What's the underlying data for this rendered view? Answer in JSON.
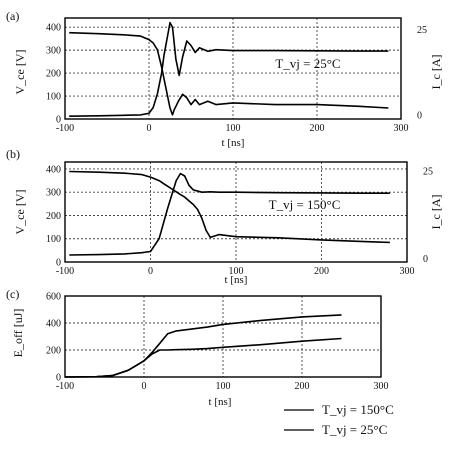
{
  "chart_data": [
    {
      "type": "line",
      "panel": "(a)",
      "xlabel": "t [ns]",
      "ylabel": "V_ce [V]",
      "ylabel_right": "I_c [A]",
      "x_ticks": [
        -100,
        0,
        100,
        200,
        300
      ],
      "y_ticks": [
        0,
        100,
        200,
        300,
        400
      ],
      "y2_ticks": [
        0,
        25
      ],
      "xlim": [
        -100,
        300
      ],
      "ylim": [
        0,
        440
      ],
      "y2lim": [
        -1.2,
        28.3
      ],
      "grid": true,
      "annotation": {
        "text": "T_vj = 25°C",
        "x": 198,
        "y": 240
      },
      "series": [
        {
          "role": "collector current",
          "axis": "right",
          "x": [
            -95,
            -60,
            -30,
            -10,
            0,
            5,
            10,
            15,
            20,
            25,
            28,
            30,
            35,
            40,
            45,
            50,
            55,
            60,
            70,
            80,
            100,
            150,
            200,
            250,
            285
          ],
          "y": [
            24,
            23.7,
            23.4,
            23,
            22,
            21,
            19,
            14,
            8,
            2,
            0,
            1.5,
            4,
            6,
            5,
            3,
            4.5,
            3,
            4,
            3,
            3.5,
            3,
            3,
            2.5,
            2
          ]
        },
        {
          "role": "collector-emitter voltage",
          "axis": "left",
          "x": [
            -95,
            -60,
            -30,
            -10,
            0,
            5,
            10,
            15,
            18,
            22,
            25,
            28,
            32,
            36,
            40,
            45,
            50,
            55,
            60,
            70,
            80,
            100,
            150,
            200,
            250,
            285
          ],
          "y": [
            12,
            14,
            16,
            18,
            25,
            50,
            110,
            200,
            280,
            360,
            420,
            400,
            260,
            190,
            270,
            340,
            320,
            290,
            310,
            295,
            302,
            298,
            298,
            297,
            296,
            296
          ]
        }
      ]
    },
    {
      "type": "line",
      "panel": "(b)",
      "xlabel": "t [ns]",
      "ylabel": "V_ce [V]",
      "ylabel_right": "I_c [A]",
      "x_ticks": [
        -100,
        0,
        100,
        200,
        300
      ],
      "y_ticks": [
        0,
        100,
        200,
        300,
        400
      ],
      "y2_ticks": [
        0,
        25
      ],
      "xlim": [
        -100,
        300
      ],
      "ylim": [
        0,
        430
      ],
      "y2lim": [
        -1,
        27.5
      ],
      "grid": true,
      "annotation": {
        "text": "T_vj = 150°C",
        "x": 185,
        "y": 245
      },
      "series": [
        {
          "role": "collector current",
          "axis": "right",
          "x": [
            -95,
            -60,
            -30,
            -10,
            0,
            10,
            15,
            20,
            25,
            30,
            35,
            40,
            45,
            50,
            55,
            60,
            65,
            70,
            80,
            100,
            150,
            200,
            250,
            280
          ],
          "y": [
            24.8,
            24.6,
            24.3,
            23.9,
            23.2,
            22.2,
            21.4,
            20.6,
            19.8,
            19,
            18.2,
            17.5,
            16.4,
            15.4,
            14,
            11.5,
            8,
            6,
            6.8,
            6.2,
            5.9,
            5.3,
            4.8,
            4.6
          ]
        },
        {
          "role": "collector-emitter voltage",
          "axis": "left",
          "x": [
            -95,
            -60,
            -30,
            -10,
            0,
            10,
            20,
            30,
            35,
            40,
            45,
            50,
            60,
            70,
            80,
            100,
            150,
            200,
            250,
            280
          ],
          "y": [
            30,
            32,
            35,
            40,
            45,
            100,
            230,
            350,
            380,
            370,
            330,
            310,
            300,
            302,
            300,
            300,
            298,
            297,
            296,
            296
          ]
        }
      ]
    },
    {
      "type": "line",
      "panel": "(c)",
      "xlabel": "t [ns]",
      "ylabel": "E_off [uJ]",
      "x_ticks": [
        -100,
        0,
        100,
        200,
        300
      ],
      "y_ticks": [
        0,
        200,
        400,
        600
      ],
      "xlim": [
        -100,
        300
      ],
      "ylim": [
        0,
        600
      ],
      "grid": true,
      "legend_position": "bottom-right",
      "series": [
        {
          "name": "T_vj = 150°C",
          "x": [
            -100,
            -60,
            -40,
            -20,
            0,
            10,
            20,
            30,
            40,
            60,
            80,
            100,
            150,
            200,
            250
          ],
          "y": [
            0,
            2,
            10,
            50,
            120,
            180,
            250,
            320,
            340,
            355,
            370,
            390,
            420,
            445,
            460
          ]
        },
        {
          "name": "T_vj = 25°C",
          "x": [
            -100,
            -60,
            -40,
            -20,
            0,
            10,
            20,
            30,
            40,
            60,
            80,
            100,
            150,
            200,
            250
          ],
          "y": [
            0,
            2,
            10,
            50,
            120,
            170,
            200,
            200,
            202,
            205,
            210,
            220,
            240,
            265,
            285
          ]
        }
      ]
    }
  ]
}
